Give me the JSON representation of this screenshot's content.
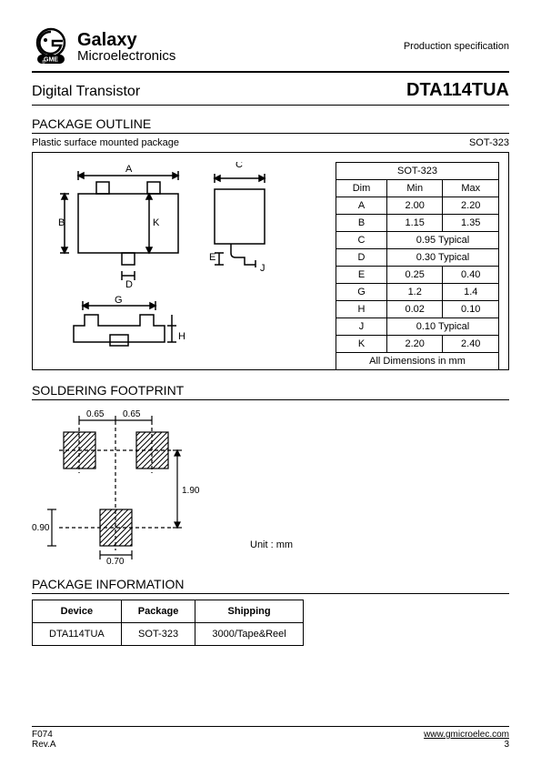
{
  "brand": {
    "top": "Galaxy",
    "bottom": "Microelectronics",
    "badge": "GME"
  },
  "spec_label": "Production specification",
  "subtype": "Digital Transistor",
  "partno": "DTA114TUA",
  "section_outline": "PACKAGE OUTLINE",
  "pkg_desc": "Plastic surface mounted package",
  "pkg_type": "SOT-323",
  "dim_table": {
    "title": "SOT-323",
    "headers": [
      "Dim",
      "Min",
      "Max"
    ],
    "rows": [
      {
        "dim": "A",
        "min": "2.00",
        "max": "2.20"
      },
      {
        "dim": "B",
        "min": "1.15",
        "max": "1.35"
      },
      {
        "dim": "C",
        "min": "0.95 Typical",
        "max": null
      },
      {
        "dim": "D",
        "min": "0.30 Typical",
        "max": null
      },
      {
        "dim": "E",
        "min": "0.25",
        "max": "0.40"
      },
      {
        "dim": "G",
        "min": "1.2",
        "max": "1.4"
      },
      {
        "dim": "H",
        "min": "0.02",
        "max": "0.10"
      },
      {
        "dim": "J",
        "min": "0.10 Typical",
        "max": null
      },
      {
        "dim": "K",
        "min": "2.20",
        "max": "2.40"
      }
    ],
    "footer": "All Dimensions in mm"
  },
  "section_footprint": "SOLDERING FOOTPRINT",
  "footprint": {
    "d065a": "0.65",
    "d065b": "0.65",
    "d190": "1.90",
    "d090": "0.90",
    "d070": "0.70",
    "unit": "Unit : mm"
  },
  "section_pkginfo": "PACKAGE INFORMATION",
  "pkg_info": {
    "headers": [
      "Device",
      "Package",
      "Shipping"
    ],
    "row": [
      "DTA114TUA",
      "SOT-323",
      "3000/Tape&Reel"
    ]
  },
  "footer": {
    "code": "F074",
    "rev": "Rev.A",
    "url": "www.gmicroelec.com",
    "page": "3"
  },
  "diag": {
    "A": "A",
    "B": "B",
    "C": "C",
    "D": "D",
    "E": "E",
    "G": "G",
    "H": "H",
    "J": "J",
    "K": "K"
  }
}
